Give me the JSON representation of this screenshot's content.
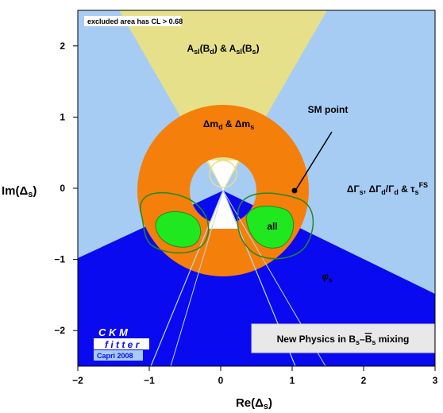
{
  "chart_data": {
    "type": "contour",
    "xlabel_base": "Re(Δ",
    "xlabel_sub": "s",
    "xlabel_tail": ")",
    "ylabel_base": "Im(Δ",
    "ylabel_sub": "s",
    "ylabel_tail": ")",
    "xlim": [
      -2,
      3
    ],
    "ylim": [
      -2.5,
      2.5
    ],
    "x_ticks": [
      {
        "v": -2,
        "t": "−2"
      },
      {
        "v": -1,
        "t": "−1"
      },
      {
        "v": 0,
        "t": "0"
      },
      {
        "v": 1,
        "t": "1"
      },
      {
        "v": 2,
        "t": "2"
      },
      {
        "v": 3,
        "t": "3"
      }
    ],
    "y_ticks": [
      {
        "v": 2,
        "t": "2"
      },
      {
        "v": 1,
        "t": "1"
      },
      {
        "v": 0,
        "t": "0"
      },
      {
        "v": -1,
        "t": "−1"
      },
      {
        "v": -2,
        "t": "−2"
      }
    ],
    "note": "excluded area has CL > 0.68",
    "sm_point": {
      "x": 1.0,
      "y": 0.0,
      "label": "SM point"
    },
    "ring": {
      "center": [
        0,
        0
      ],
      "r_inner": 0.47,
      "r_outer": 1.2
    },
    "labels": {
      "asl": [
        "A",
        "sl",
        "(B",
        "d",
        ") & A",
        "sl",
        "(B",
        "s",
        ")"
      ],
      "dm": [
        "Δm",
        "d",
        " & Δm",
        "s"
      ],
      "dgamma": [
        "ΔΓ",
        "s",
        ", ΔΓ",
        "d",
        "/Γ",
        "d",
        " & τ",
        "s",
        "FS"
      ],
      "all": "all",
      "phis": [
        "φ",
        "s"
      ],
      "np": [
        "New Physics in B",
        "s",
        "–",
        "B",
        "s",
        " mixing"
      ]
    },
    "ckm": {
      "line1": "C K M",
      "line2": "f i t t e r",
      "line3": "Capri 2008"
    },
    "colors": {
      "light_blue": "#a6ccf4",
      "yellow": "#e6e08a",
      "orange": "#f47f0a",
      "dark_blue": "#0a0af0",
      "green": "#1fe81f",
      "green_line": "#208a20"
    }
  }
}
